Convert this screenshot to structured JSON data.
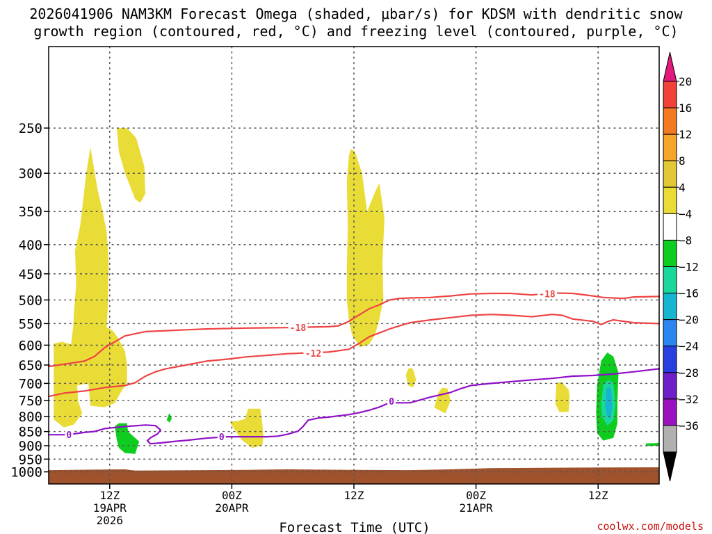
{
  "chart_data": {
    "type": "contour",
    "title_line1": "2026041906 NAM3KM Forecast Omega (shaded, μbar/s) for KDSM with dendritic snow",
    "title_line2": "growth region (contoured, red, °C) and freezing level (contoured, purple, °C)",
    "xlabel": "Forecast Time (UTC)",
    "watermark": "coolwx.com/models",
    "y_axis": {
      "unit": "hPa",
      "ylim": [
        1050,
        180
      ],
      "ticks": [
        250,
        300,
        350,
        400,
        450,
        500,
        550,
        600,
        650,
        700,
        750,
        800,
        850,
        900,
        950,
        1000
      ]
    },
    "x_axis": {
      "unit": "hours since 2026041900",
      "xlim": [
        0.5,
        60.5
      ],
      "ticks": [
        {
          "h": 6.5,
          "l1": "12Z",
          "l2": "19APR",
          "l3": "2026"
        },
        {
          "h": 18.5,
          "l1": "00Z",
          "l2": "20APR",
          "l3": ""
        },
        {
          "h": 30.5,
          "l1": "12Z",
          "l2": "",
          "l3": ""
        },
        {
          "h": 42.5,
          "l1": "00Z",
          "l2": "21APR",
          "l3": ""
        },
        {
          "h": 54.5,
          "l1": "12Z",
          "l2": "",
          "l3": ""
        }
      ]
    },
    "colorbar": {
      "levels": [
        "20",
        "16",
        "12",
        "8",
        "4",
        "−4",
        "−8",
        "−12",
        "−16",
        "−20",
        "−24",
        "−28",
        "−32",
        "−36"
      ],
      "colors": [
        "#e11a7c",
        "#f04236",
        "#f47a22",
        "#f5a52a",
        "#e2c737",
        "#e9dc36",
        "#ffffff",
        "#0fcd1e",
        "#1ad79b",
        "#17b5d0",
        "#2c86f0",
        "#2a3fe0",
        "#6e1fc8",
        "#9a12c0",
        "#b0b0b0",
        "#000000"
      ]
    },
    "series": [
      {
        "name": "-18",
        "color": "#ee4444",
        "points": [
          [
            0.5,
            654
          ],
          [
            4,
            640
          ],
          [
            5,
            628
          ],
          [
            6,
            606
          ],
          [
            8,
            578
          ],
          [
            10,
            568
          ],
          [
            12,
            566
          ],
          [
            14,
            564
          ],
          [
            16,
            562
          ],
          [
            20,
            560
          ],
          [
            24,
            559
          ],
          [
            26,
            558
          ],
          [
            28,
            557
          ],
          [
            29,
            555
          ],
          [
            30,
            545
          ],
          [
            32,
            518
          ],
          [
            33,
            510
          ],
          [
            34,
            500
          ],
          [
            35,
            497
          ],
          [
            36,
            496
          ],
          [
            38,
            495
          ],
          [
            40,
            492
          ],
          [
            42,
            488
          ],
          [
            44,
            487
          ],
          [
            46,
            487
          ],
          [
            48,
            490
          ],
          [
            50,
            486
          ],
          [
            52,
            487
          ],
          [
            54,
            492
          ],
          [
            55,
            495
          ],
          [
            57,
            497
          ],
          [
            58,
            494
          ],
          [
            60.5,
            493
          ]
        ]
      },
      {
        "name": "-12",
        "color": "#ee4444",
        "points": [
          [
            0.5,
            738
          ],
          [
            2,
            728
          ],
          [
            4,
            722
          ],
          [
            6,
            712
          ],
          [
            8,
            706
          ],
          [
            9,
            698
          ],
          [
            10,
            680
          ],
          [
            11,
            668
          ],
          [
            12,
            660
          ],
          [
            14,
            650
          ],
          [
            16,
            640
          ],
          [
            18,
            635
          ],
          [
            20,
            629
          ],
          [
            22,
            625
          ],
          [
            24,
            621
          ],
          [
            26,
            619
          ],
          [
            28,
            617
          ],
          [
            30,
            610
          ],
          [
            31,
            596
          ],
          [
            32,
            580
          ],
          [
            34,
            562
          ],
          [
            36,
            548
          ],
          [
            38,
            542
          ],
          [
            40,
            537
          ],
          [
            42,
            532
          ],
          [
            44,
            530
          ],
          [
            46,
            532
          ],
          [
            48,
            535
          ],
          [
            50,
            530
          ],
          [
            51,
            532
          ],
          [
            52,
            540
          ],
          [
            54,
            545
          ],
          [
            54.8,
            552
          ],
          [
            55.5,
            545
          ],
          [
            56,
            542
          ],
          [
            58,
            548
          ],
          [
            60.5,
            550
          ]
        ]
      },
      {
        "name": "0",
        "color": "#9010c8",
        "points": [
          [
            0.5,
            861
          ],
          [
            2,
            861
          ],
          [
            3,
            858
          ],
          [
            4,
            853
          ],
          [
            5,
            850
          ],
          [
            6,
            840
          ],
          [
            8,
            833
          ],
          [
            10,
            828
          ],
          [
            11,
            830
          ],
          [
            11.5,
            845
          ],
          [
            11.2,
            858
          ],
          [
            10.5,
            872
          ],
          [
            10.2,
            882
          ],
          [
            10.5,
            893
          ],
          [
            11.5,
            890
          ],
          [
            13,
            884
          ],
          [
            14,
            881
          ],
          [
            16,
            873
          ],
          [
            18,
            868
          ],
          [
            20,
            868
          ],
          [
            22,
            868
          ],
          [
            23,
            866
          ],
          [
            24,
            859
          ],
          [
            25,
            849
          ],
          [
            25.5,
            833
          ],
          [
            26,
            812
          ],
          [
            27,
            805
          ],
          [
            28,
            802
          ],
          [
            30,
            794
          ],
          [
            31,
            788
          ],
          [
            32,
            780
          ],
          [
            33,
            770
          ],
          [
            34,
            757
          ],
          [
            36,
            757
          ],
          [
            38,
            740
          ],
          [
            40,
            726
          ],
          [
            41,
            715
          ],
          [
            42,
            706
          ],
          [
            44,
            700
          ],
          [
            46,
            695
          ],
          [
            48,
            690
          ],
          [
            50,
            686
          ],
          [
            52,
            680
          ],
          [
            54,
            678
          ],
          [
            56,
            674
          ],
          [
            58,
            668
          ],
          [
            60.5,
            660
          ]
        ]
      }
    ],
    "contour_labels": [
      {
        "text": "-18",
        "h": 25,
        "p": 559,
        "color": "#ee4444"
      },
      {
        "text": "-18",
        "h": 49.5,
        "p": 488,
        "color": "#ee4444"
      },
      {
        "text": "-12",
        "h": 26.5,
        "p": 620,
        "color": "#ee4444"
      },
      {
        "text": "0",
        "h": 2.5,
        "p": 861,
        "color": "#9010c8"
      },
      {
        "text": "0",
        "h": 17.5,
        "p": 868,
        "color": "#9010c8"
      },
      {
        "text": "0",
        "h": 34.2,
        "p": 752,
        "color": "#9010c8"
      }
    ],
    "shaded_regions": [
      {
        "level": "4",
        "color": "#e9dc36",
        "points": [
          [
            1,
            810
          ],
          [
            2,
            836
          ],
          [
            3,
            826
          ],
          [
            3.8,
            790
          ],
          [
            3.4,
            752
          ],
          [
            3.3,
            706
          ],
          [
            4.4,
            700
          ],
          [
            4.6,
            766
          ],
          [
            6,
            771
          ],
          [
            7,
            758
          ],
          [
            7.5,
            730
          ],
          [
            8.2,
            698
          ],
          [
            8.2,
            650
          ],
          [
            8.0,
            615
          ],
          [
            7.3,
            582
          ],
          [
            6.8,
            566
          ],
          [
            6.2,
            558
          ],
          [
            6.3,
            520
          ],
          [
            6.4,
            430
          ],
          [
            6.2,
            380
          ],
          [
            5.8,
            350
          ],
          [
            5.3,
            320
          ],
          [
            4.6,
            270
          ],
          [
            4.2,
            300
          ],
          [
            3.6,
            370
          ],
          [
            3.1,
            410
          ],
          [
            3.2,
            470
          ],
          [
            3.0,
            520
          ],
          [
            2.9,
            560
          ],
          [
            2.7,
            598
          ],
          [
            1.8,
            592
          ],
          [
            1,
            596
          ]
        ]
      },
      {
        "level": "4",
        "color": "#e9dc36",
        "points": [
          [
            7.2,
            250
          ],
          [
            7.4,
            275
          ],
          [
            8.0,
            300
          ],
          [
            9.0,
            333
          ],
          [
            9.5,
            338
          ],
          [
            10.0,
            326
          ],
          [
            9.9,
            292
          ],
          [
            9.1,
            260
          ],
          [
            8.2,
            250
          ]
        ]
      },
      {
        "level": "4",
        "color": "#e9dc36",
        "points": [
          [
            18.3,
            818
          ],
          [
            19.0,
            855
          ],
          [
            19.5,
            880
          ],
          [
            20.5,
            908
          ],
          [
            21.5,
            898
          ],
          [
            21.6,
            865
          ],
          [
            21.5,
            824
          ],
          [
            21.3,
            775
          ],
          [
            20.1,
            775
          ],
          [
            19.8,
            808
          ],
          [
            19.0,
            815
          ]
        ]
      },
      {
        "level": "4",
        "color": "#e9dc36",
        "points": [
          [
            30.0,
            280
          ],
          [
            29.8,
            310
          ],
          [
            29.9,
            370
          ],
          [
            29.8,
            440
          ],
          [
            29.8,
            500
          ],
          [
            30.0,
            540
          ],
          [
            30.3,
            575
          ],
          [
            31.1,
            605
          ],
          [
            32.0,
            598
          ],
          [
            32.6,
            574
          ],
          [
            33.0,
            540
          ],
          [
            33.4,
            500
          ],
          [
            33.3,
            430
          ],
          [
            33.5,
            360
          ],
          [
            33.0,
            312
          ],
          [
            32.6,
            323
          ],
          [
            31.8,
            350
          ],
          [
            31.3,
            300
          ],
          [
            30.6,
            275
          ],
          [
            30.2,
            272
          ]
        ]
      },
      {
        "level": "4",
        "color": "#e9dc36",
        "points": [
          [
            35.6,
            676
          ],
          [
            35.8,
            705
          ],
          [
            36.3,
            712
          ],
          [
            36.6,
            690
          ],
          [
            36.3,
            660
          ],
          [
            35.9,
            658
          ]
        ]
      },
      {
        "level": "4",
        "color": "#e9dc36",
        "points": [
          [
            38.8,
            726
          ],
          [
            38.4,
            772
          ],
          [
            39.5,
            790
          ],
          [
            40.0,
            750
          ],
          [
            39.7,
            715
          ],
          [
            39.2,
            712
          ]
        ]
      },
      {
        "level": "4",
        "color": "#e9dc36",
        "points": [
          [
            50.4,
            700
          ],
          [
            50.3,
            760
          ],
          [
            50.7,
            786
          ],
          [
            51.6,
            785
          ],
          [
            51.7,
            740
          ],
          [
            51.6,
            718
          ],
          [
            50.9,
            696
          ]
        ]
      },
      {
        "level": "-4",
        "color": "#0fcd1e",
        "points": [
          [
            7.0,
            832
          ],
          [
            7.2,
            880
          ],
          [
            7.4,
            908
          ],
          [
            8.0,
            927
          ],
          [
            9.0,
            930
          ],
          [
            9.4,
            885
          ],
          [
            8.3,
            850
          ],
          [
            8.2,
            822
          ],
          [
            7.4,
            822
          ]
        ]
      },
      {
        "level": "-4",
        "color": "#0fcd1e",
        "points": [
          [
            12.3,
            793
          ],
          [
            12.1,
            812
          ],
          [
            12.4,
            820
          ],
          [
            12.6,
            806
          ],
          [
            12.4,
            790
          ]
        ]
      },
      {
        "level": "-4",
        "color": "#0fcd1e",
        "points": [
          [
            54.8,
            639
          ],
          [
            54.4,
            705
          ],
          [
            54.3,
            790
          ],
          [
            54.4,
            855
          ],
          [
            55.0,
            882
          ],
          [
            56.0,
            872
          ],
          [
            56.4,
            822
          ],
          [
            56.4,
            750
          ],
          [
            56.5,
            670
          ],
          [
            56.0,
            628
          ],
          [
            55.4,
            618
          ]
        ]
      },
      {
        "level": "-8",
        "color": "#1ad79b",
        "points": [
          [
            55.0,
            705
          ],
          [
            54.8,
            760
          ],
          [
            54.9,
            800
          ],
          [
            55.4,
            830
          ],
          [
            56.0,
            812
          ],
          [
            56.2,
            762
          ],
          [
            56.0,
            700
          ],
          [
            55.5,
            690
          ]
        ]
      },
      {
        "level": "-12",
        "color": "#17b5d0",
        "points": [
          [
            55.3,
            715
          ],
          [
            55.2,
            770
          ],
          [
            55.4,
            800
          ],
          [
            55.7,
            808
          ],
          [
            55.9,
            770
          ],
          [
            55.8,
            720
          ],
          [
            55.6,
            710
          ]
        ]
      },
      {
        "level": "-4",
        "color": "#0fcd1e",
        "points": [
          [
            59.2,
            892
          ],
          [
            59.2,
            902
          ],
          [
            60.5,
            900
          ],
          [
            60.5,
            890
          ]
        ]
      }
    ],
    "terrain": {
      "color": "#a0522d",
      "points": [
        [
          0.5,
          993
        ],
        [
          8,
          990
        ],
        [
          9,
          995
        ],
        [
          20,
          992
        ],
        [
          24,
          990
        ],
        [
          30,
          992
        ],
        [
          36,
          993
        ],
        [
          40,
          990
        ],
        [
          44,
          985
        ],
        [
          52,
          983
        ],
        [
          60.5,
          982
        ]
      ]
    }
  }
}
